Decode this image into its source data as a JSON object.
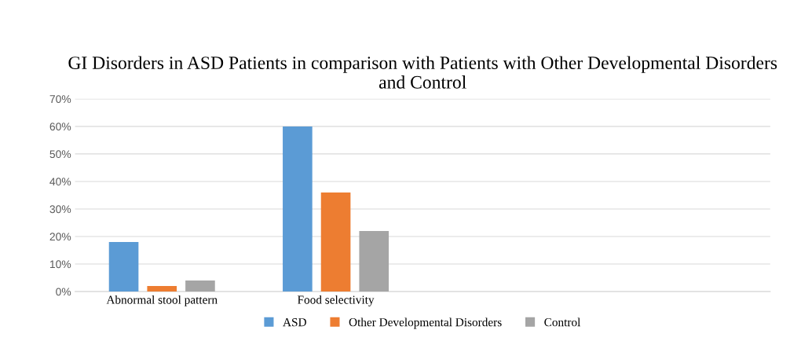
{
  "chart_data": {
    "type": "bar",
    "title": "GI Disorders in ASD Patients in comparison with Patients with Other Developmental Disorders and Control",
    "categories": [
      "Abnormal stool pattern",
      "Food selectivity",
      null,
      null
    ],
    "series": [
      {
        "name": "ASD",
        "color": "#5b9bd5",
        "values": [
          18,
          60,
          null,
          null
        ]
      },
      {
        "name": "Other Developmental Disorders",
        "color": "#ed7d31",
        "values": [
          2,
          36,
          null,
          null
        ]
      },
      {
        "name": "Control",
        "color": "#a5a5a5",
        "values": [
          4,
          22,
          null,
          null
        ]
      }
    ],
    "ylim": [
      0,
      70
    ],
    "yticks": [
      {
        "value": 0,
        "label": "0%"
      },
      {
        "value": 10,
        "label": "10%"
      },
      {
        "value": 20,
        "label": "20%"
      },
      {
        "value": 30,
        "label": "30%"
      },
      {
        "value": 40,
        "label": "40%"
      },
      {
        "value": 50,
        "label": "50%"
      },
      {
        "value": 60,
        "label": "60%"
      },
      {
        "value": 70,
        "label": "70%"
      }
    ],
    "grid": "y",
    "legend": "bottom"
  }
}
